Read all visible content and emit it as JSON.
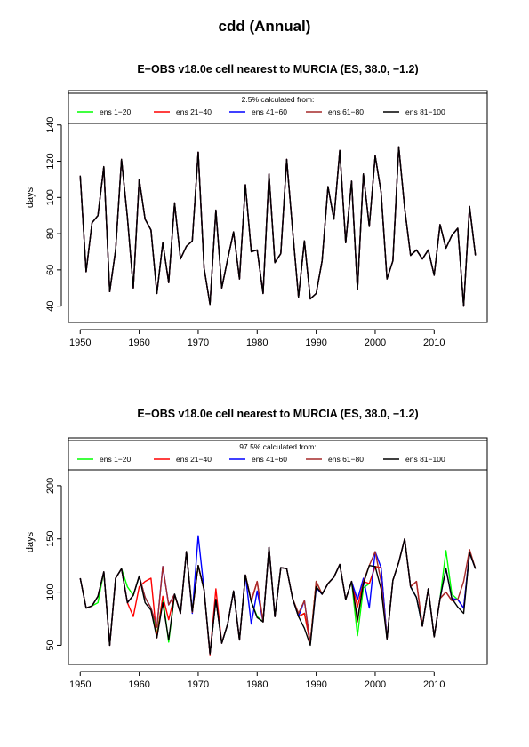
{
  "title": "cdd (Annual)",
  "chart_data": [
    {
      "type": "line",
      "title": "E−OBS v18.0e cell nearest to MURCIA (ES, 38.0, −1.2)",
      "xlabel": "",
      "ylabel": "days",
      "legend_title": "2.5% calculated from:",
      "legend_position": "top",
      "xlim": [
        1948,
        2019
      ],
      "ylim": [
        31,
        159
      ],
      "xticks": [
        1950,
        1960,
        1970,
        1980,
        1990,
        2000,
        2010
      ],
      "yticks": [
        40,
        60,
        80,
        100,
        120,
        140
      ],
      "x": [
        1950,
        1951,
        1952,
        1953,
        1954,
        1955,
        1956,
        1957,
        1958,
        1959,
        1960,
        1961,
        1962,
        1963,
        1964,
        1965,
        1966,
        1967,
        1968,
        1969,
        1970,
        1971,
        1972,
        1973,
        1974,
        1975,
        1976,
        1977,
        1978,
        1979,
        1980,
        1981,
        1982,
        1983,
        1984,
        1985,
        1986,
        1987,
        1988,
        1989,
        1990,
        1991,
        1992,
        1993,
        1994,
        1995,
        1996,
        1997,
        1998,
        1999,
        2000,
        2001,
        2002,
        2003,
        2004,
        2005,
        2006,
        2007,
        2008,
        2009,
        2010,
        2011,
        2012,
        2013,
        2014,
        2015,
        2016,
        2017
      ],
      "series": [
        {
          "name": "ens 1−20",
          "color": "#00ff00",
          "values": [
            112,
            59,
            86,
            90,
            117,
            48,
            71,
            121,
            89,
            50,
            110,
            88,
            82,
            47,
            75,
            53,
            97,
            66,
            73,
            76,
            125,
            61,
            41,
            93,
            50,
            66,
            81,
            55,
            107,
            70,
            71,
            47,
            113,
            64,
            69,
            121,
            82,
            45,
            76,
            44,
            47,
            65,
            106,
            88,
            126,
            75,
            109,
            49,
            113,
            84,
            123,
            103,
            55,
            65,
            128,
            94,
            68,
            71,
            66,
            71,
            57,
            85,
            72,
            79,
            83,
            40,
            95,
            68
          ]
        },
        {
          "name": "ens 21−40",
          "color": "#ff0000",
          "values": [
            112,
            59,
            86,
            90,
            117,
            48,
            71,
            121,
            89,
            50,
            110,
            88,
            82,
            47,
            75,
            53,
            97,
            66,
            73,
            76,
            125,
            61,
            41,
            93,
            50,
            66,
            81,
            55,
            107,
            70,
            71,
            47,
            113,
            64,
            69,
            121,
            82,
            45,
            76,
            44,
            47,
            65,
            106,
            88,
            126,
            75,
            109,
            49,
            113,
            84,
            123,
            103,
            55,
            65,
            128,
            94,
            68,
            71,
            66,
            71,
            57,
            85,
            72,
            79,
            83,
            40,
            95,
            68
          ]
        },
        {
          "name": "ens 41−60",
          "color": "#0000ff",
          "values": [
            112,
            59,
            86,
            90,
            117,
            48,
            71,
            121,
            89,
            50,
            110,
            88,
            82,
            47,
            75,
            53,
            97,
            66,
            73,
            76,
            125,
            61,
            41,
            93,
            50,
            66,
            81,
            55,
            107,
            70,
            71,
            47,
            113,
            64,
            69,
            121,
            82,
            45,
            76,
            44,
            47,
            65,
            106,
            88,
            126,
            75,
            109,
            49,
            113,
            84,
            123,
            103,
            55,
            65,
            128,
            94,
            68,
            71,
            66,
            71,
            57,
            85,
            72,
            79,
            83,
            40,
            95,
            68
          ]
        },
        {
          "name": "ens 61−80",
          "color": "#a52a2a",
          "values": [
            112,
            59,
            86,
            90,
            117,
            48,
            71,
            121,
            89,
            50,
            110,
            88,
            82,
            47,
            75,
            53,
            97,
            66,
            73,
            76,
            125,
            61,
            41,
            93,
            50,
            66,
            81,
            55,
            107,
            70,
            71,
            47,
            113,
            64,
            69,
            121,
            82,
            45,
            76,
            44,
            47,
            65,
            106,
            88,
            126,
            75,
            109,
            49,
            113,
            84,
            123,
            103,
            55,
            65,
            128,
            94,
            68,
            71,
            66,
            71,
            57,
            85,
            72,
            79,
            83,
            40,
            95,
            68
          ]
        },
        {
          "name": "ens 81−100",
          "color": "#000000",
          "values": [
            112,
            59,
            86,
            90,
            117,
            48,
            71,
            121,
            89,
            50,
            110,
            88,
            82,
            47,
            75,
            53,
            97,
            66,
            73,
            76,
            125,
            61,
            41,
            93,
            50,
            66,
            81,
            55,
            107,
            70,
            71,
            47,
            113,
            64,
            69,
            121,
            82,
            45,
            76,
            44,
            47,
            65,
            106,
            88,
            126,
            75,
            109,
            49,
            113,
            84,
            123,
            103,
            55,
            65,
            128,
            94,
            68,
            71,
            66,
            71,
            57,
            85,
            72,
            79,
            83,
            40,
            95,
            68
          ]
        }
      ]
    },
    {
      "type": "line",
      "title": "E−OBS v18.0e cell nearest to MURCIA (ES, 38.0, −1.2)",
      "xlabel": "",
      "ylabel": "days",
      "legend_title": "97.5% calculated from:",
      "legend_position": "top",
      "xlim": [
        1948,
        2019
      ],
      "ylim": [
        32,
        245
      ],
      "xticks": [
        1950,
        1960,
        1970,
        1980,
        1990,
        2000,
        2010
      ],
      "yticks": [
        50,
        100,
        150,
        200
      ],
      "x": [
        1950,
        1951,
        1952,
        1953,
        1954,
        1955,
        1956,
        1957,
        1958,
        1959,
        1960,
        1961,
        1962,
        1963,
        1964,
        1965,
        1966,
        1967,
        1968,
        1969,
        1970,
        1971,
        1972,
        1973,
        1974,
        1975,
        1976,
        1977,
        1978,
        1979,
        1980,
        1981,
        1982,
        1983,
        1984,
        1985,
        1986,
        1987,
        1988,
        1989,
        1990,
        1991,
        1992,
        1993,
        1994,
        1995,
        1996,
        1997,
        1998,
        1999,
        2000,
        2001,
        2002,
        2003,
        2004,
        2005,
        2006,
        2007,
        2008,
        2009,
        2010,
        2011,
        2012,
        2013,
        2014,
        2015,
        2016,
        2017
      ],
      "series": [
        {
          "name": "ens 1−20",
          "color": "#00ff00",
          "values": [
            113,
            85,
            87,
            90,
            119,
            50,
            113,
            122,
            105,
            97,
            115,
            95,
            85,
            60,
            95,
            53,
            98,
            80,
            138,
            81,
            125,
            102,
            42,
            93,
            52,
            70,
            101,
            55,
            116,
            91,
            77,
            72,
            142,
            77,
            123,
            122,
            94,
            77,
            80,
            52,
            110,
            98,
            108,
            114,
            126,
            93,
            110,
            59,
            104,
            108,
            124,
            123,
            56,
            111,
            128,
            150,
            105,
            95,
            68,
            103,
            58,
            94,
            139,
            98,
            93,
            85,
            137,
            122
          ]
        },
        {
          "name": "ens 21−40",
          "color": "#ff0000",
          "values": [
            113,
            85,
            87,
            96,
            119,
            50,
            113,
            122,
            90,
            77,
            105,
            110,
            113,
            57,
            96,
            74,
            97,
            80,
            138,
            81,
            125,
            102,
            41,
            103,
            52,
            70,
            101,
            55,
            116,
            92,
            110,
            72,
            142,
            77,
            123,
            122,
            94,
            77,
            80,
            52,
            110,
            98,
            108,
            114,
            126,
            93,
            110,
            86,
            110,
            108,
            124,
            123,
            56,
            111,
            128,
            150,
            105,
            110,
            68,
            103,
            58,
            94,
            100,
            92,
            93,
            85,
            137,
            122
          ]
        },
        {
          "name": "ens 41−60",
          "color": "#0000ff",
          "values": [
            113,
            85,
            87,
            96,
            119,
            50,
            113,
            122,
            90,
            97,
            115,
            95,
            85,
            67,
            124,
            88,
            98,
            80,
            138,
            80,
            153,
            102,
            42,
            93,
            52,
            70,
            101,
            55,
            116,
            70,
            101,
            72,
            142,
            77,
            123,
            122,
            94,
            77,
            92,
            52,
            104,
            98,
            108,
            114,
            126,
            93,
            110,
            93,
            113,
            85,
            138,
            123,
            56,
            111,
            128,
            150,
            105,
            95,
            68,
            103,
            58,
            94,
            122,
            94,
            93,
            85,
            137,
            122
          ]
        },
        {
          "name": "ens 61−80",
          "color": "#a52a2a",
          "values": [
            113,
            85,
            87,
            96,
            119,
            50,
            113,
            122,
            90,
            97,
            115,
            95,
            85,
            67,
            124,
            88,
            98,
            80,
            138,
            81,
            125,
            102,
            42,
            93,
            52,
            70,
            101,
            55,
            116,
            91,
            110,
            72,
            142,
            77,
            123,
            122,
            94,
            80,
            92,
            52,
            110,
            98,
            108,
            114,
            126,
            93,
            110,
            72,
            110,
            125,
            138,
            110,
            56,
            111,
            128,
            150,
            105,
            110,
            68,
            103,
            58,
            94,
            100,
            92,
            93,
            110,
            140,
            122
          ]
        },
        {
          "name": "ens 81−100",
          "color": "#000000",
          "values": [
            113,
            85,
            87,
            96,
            119,
            50,
            113,
            122,
            90,
            97,
            115,
            90,
            83,
            57,
            90,
            55,
            98,
            80,
            138,
            82,
            125,
            102,
            42,
            93,
            52,
            70,
            101,
            55,
            116,
            91,
            76,
            72,
            142,
            77,
            123,
            122,
            94,
            77,
            66,
            50,
            105,
            98,
            108,
            114,
            126,
            93,
            110,
            74,
            108,
            125,
            124,
            103,
            56,
            111,
            128,
            150,
            105,
            95,
            68,
            103,
            58,
            94,
            122,
            94,
            86,
            80,
            137,
            122
          ]
        }
      ]
    }
  ]
}
